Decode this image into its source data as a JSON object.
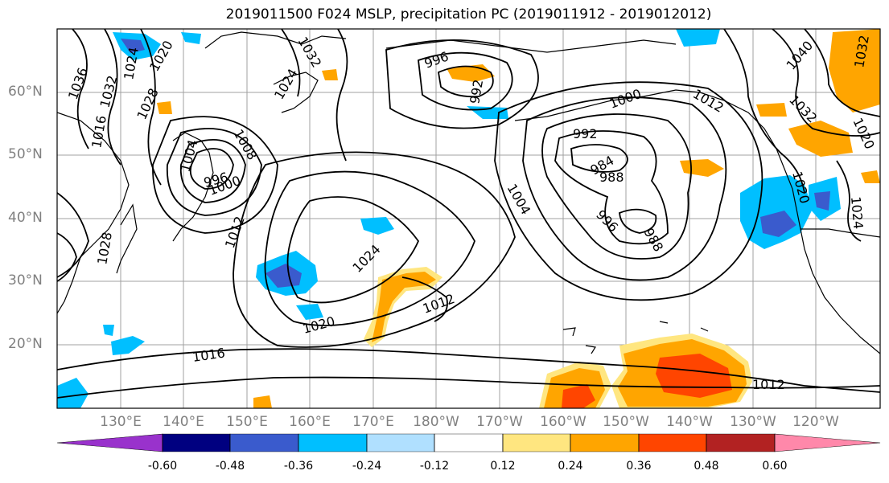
{
  "title": "2019011500 F024 MSLP, precipitation PC (2019011912 - 2019012012)",
  "lat_labels": [
    "60°N",
    "50°N",
    "40°N",
    "30°N",
    "20°N"
  ],
  "lon_labels": [
    "130°E",
    "140°E",
    "150°E",
    "160°E",
    "170°E",
    "180°W",
    "170°W",
    "160°W",
    "150°W",
    "140°W",
    "130°W",
    "120°W"
  ],
  "colorbar": {
    "tick_labels": [
      "-0.60",
      "-0.48",
      "-0.36",
      "-0.24",
      "-0.12",
      "0.12",
      "0.24",
      "0.36",
      "0.48",
      "0.60"
    ],
    "colors": [
      "#9932cc",
      "#000080",
      "#3a5bcd",
      "#00bfff",
      "#b0e0ff",
      "#ffffff",
      "#ffe680",
      "#ffa500",
      "#ff4500",
      "#b22222",
      "#ff88aa"
    ]
  },
  "contour_labels": {
    "l1036": "1036",
    "l1032a": "1032",
    "l1028a": "1028",
    "l1024a": "1024",
    "l1020a": "1020",
    "l1016a": "1016",
    "l1004a": "1004",
    "l1008a": "1008",
    "l996a": "996",
    "l1000a": "1000",
    "l1012a": "1012",
    "l1028b": "1028",
    "l1024b": "1024",
    "l1020b": "1020",
    "l1012b": "1012",
    "l1016b": "1016",
    "l996b": "996",
    "l992a": "992",
    "l1000b": "1000",
    "l992b": "992",
    "l984": "984",
    "l988a": "988",
    "l1004b": "1004",
    "l996c": "996",
    "l988b": "988",
    "l1012c": "1012",
    "l1040": "1040",
    "l1032b": "1032",
    "l1020c": "1020",
    "l1032c": "1032",
    "l1024c": "1024",
    "l1020d": "1020",
    "l1012d": "1012",
    "l1032d": "1032",
    "l1024d": "1024"
  }
}
